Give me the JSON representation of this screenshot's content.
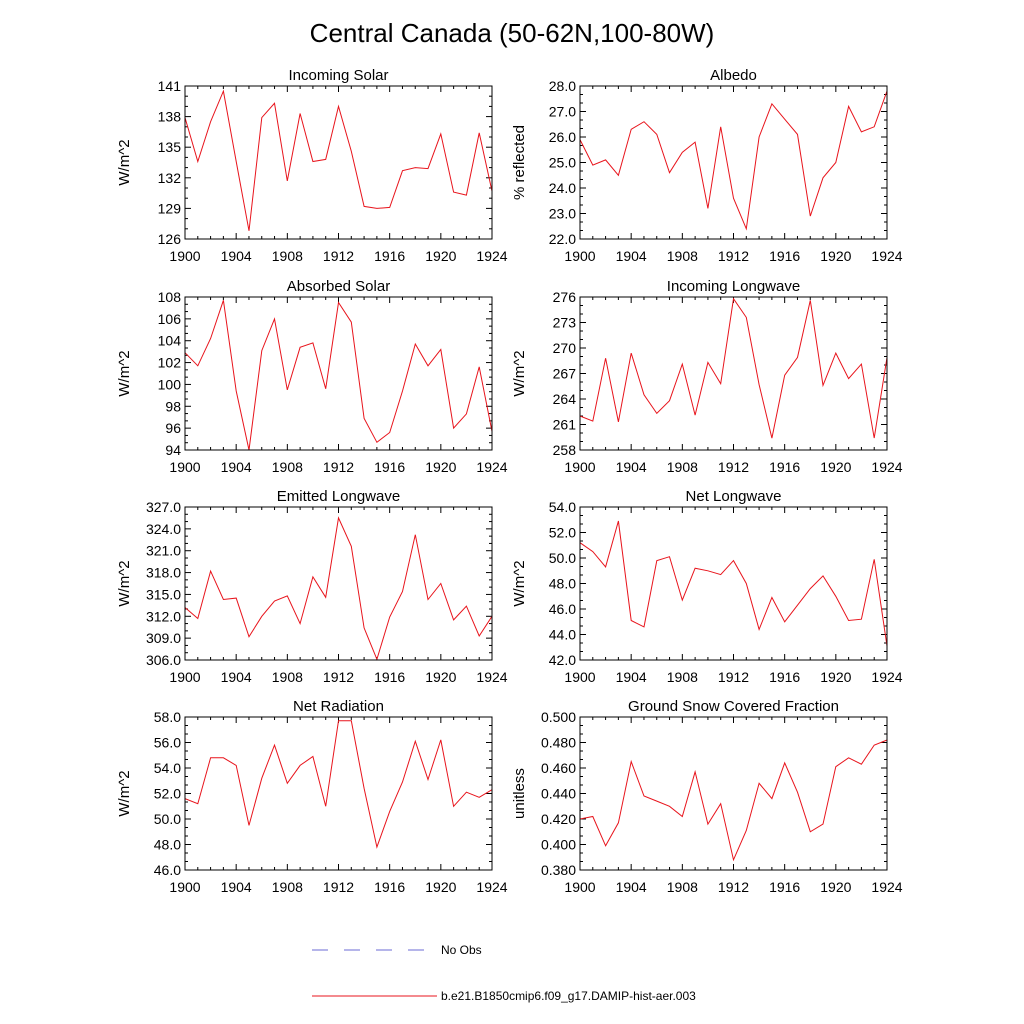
{
  "figure": {
    "title": "Central Canada (50-62N,100-80W)",
    "line_color": "#e8141c",
    "obs_color": "#6b6bd6"
  },
  "legend": {
    "obs_label": "No Obs",
    "model_label": "b.e21.B1850cmip6.f09_g17.DAMIP-hist-aer.003"
  },
  "chart_data": [
    {
      "type": "line",
      "title": "Incoming Solar",
      "ylabel": "W/m^2",
      "xlim": [
        1900,
        1924
      ],
      "ylim": [
        126,
        141
      ],
      "xticks": [
        1900,
        1904,
        1908,
        1912,
        1916,
        1920,
        1924
      ],
      "yticks": [
        "126",
        "129",
        "132",
        "135",
        "138",
        "141"
      ],
      "x": [
        1900,
        1901,
        1902,
        1903,
        1904,
        1905,
        1906,
        1907,
        1908,
        1909,
        1910,
        1911,
        1912,
        1913,
        1914,
        1915,
        1916,
        1917,
        1918,
        1919,
        1920,
        1921,
        1922,
        1923,
        1924
      ],
      "values": [
        137.9,
        133.6,
        137.5,
        140.5,
        133.6,
        126.8,
        137.9,
        139.3,
        131.7,
        138.3,
        133.6,
        133.8,
        139.0,
        134.6,
        129.2,
        129.0,
        129.1,
        132.7,
        133.0,
        132.9,
        136.3,
        130.6,
        130.3,
        136.4,
        130.7
      ]
    },
    {
      "type": "line",
      "title": "Albedo",
      "ylabel": "% reflected",
      "xlim": [
        1900,
        1924
      ],
      "ylim": [
        22,
        28
      ],
      "xticks": [
        1900,
        1904,
        1908,
        1912,
        1916,
        1920,
        1924
      ],
      "yticks": [
        "22.0",
        "23.0",
        "24.0",
        "25.0",
        "26.0",
        "27.0",
        "28.0"
      ],
      "x": [
        1900,
        1901,
        1902,
        1903,
        1904,
        1905,
        1906,
        1907,
        1908,
        1909,
        1910,
        1911,
        1912,
        1913,
        1914,
        1915,
        1916,
        1917,
        1918,
        1919,
        1920,
        1921,
        1922,
        1923,
        1924
      ],
      "values": [
        25.9,
        24.9,
        25.1,
        24.5,
        26.3,
        26.6,
        26.1,
        24.6,
        25.4,
        25.8,
        23.2,
        26.4,
        23.6,
        22.4,
        26.0,
        27.3,
        26.7,
        26.1,
        22.9,
        24.4,
        25.0,
        27.2,
        26.2,
        26.4,
        27.8
      ]
    },
    {
      "type": "line",
      "title": "Absorbed Solar",
      "ylabel": "W/m^2",
      "xlim": [
        1900,
        1924
      ],
      "ylim": [
        94,
        108
      ],
      "xticks": [
        1900,
        1904,
        1908,
        1912,
        1916,
        1920,
        1924
      ],
      "yticks": [
        "94",
        "96",
        "98",
        "100",
        "102",
        "104",
        "106",
        "108"
      ],
      "x": [
        1900,
        1901,
        1902,
        1903,
        1904,
        1905,
        1906,
        1907,
        1908,
        1909,
        1910,
        1911,
        1912,
        1913,
        1914,
        1915,
        1916,
        1917,
        1918,
        1919,
        1920,
        1921,
        1922,
        1923,
        1924
      ],
      "values": [
        102.9,
        101.7,
        104.2,
        107.7,
        99.4,
        94.0,
        103.1,
        106.0,
        99.5,
        103.4,
        103.8,
        99.6,
        107.5,
        105.7,
        96.9,
        94.7,
        95.6,
        99.4,
        103.7,
        101.7,
        103.2,
        96.0,
        97.3,
        101.6,
        95.7
      ]
    },
    {
      "type": "line",
      "title": "Incoming Longwave",
      "ylabel": "W/m^2",
      "xlim": [
        1900,
        1924
      ],
      "ylim": [
        258,
        276
      ],
      "xticks": [
        1900,
        1904,
        1908,
        1912,
        1916,
        1920,
        1924
      ],
      "yticks": [
        "258",
        "261",
        "264",
        "267",
        "270",
        "273",
        "276"
      ],
      "x": [
        1900,
        1901,
        1902,
        1903,
        1904,
        1905,
        1906,
        1907,
        1908,
        1909,
        1910,
        1911,
        1912,
        1913,
        1914,
        1915,
        1916,
        1917,
        1918,
        1919,
        1920,
        1921,
        1922,
        1923,
        1924
      ],
      "values": [
        262.0,
        261.4,
        268.8,
        261.3,
        269.4,
        264.5,
        262.3,
        263.8,
        268.1,
        262.1,
        268.3,
        265.8,
        275.8,
        273.6,
        265.7,
        259.4,
        266.8,
        268.9,
        275.6,
        265.6,
        269.4,
        266.4,
        268.1,
        259.4,
        268.9
      ]
    },
    {
      "type": "line",
      "title": "Emitted Longwave",
      "ylabel": "W/m^2",
      "xlim": [
        1900,
        1924
      ],
      "ylim": [
        306,
        327
      ],
      "xticks": [
        1900,
        1904,
        1908,
        1912,
        1916,
        1920,
        1924
      ],
      "yticks": [
        "306.0",
        "309.0",
        "312.0",
        "315.0",
        "318.0",
        "321.0",
        "324.0",
        "327.0"
      ],
      "x": [
        1900,
        1901,
        1902,
        1903,
        1904,
        1905,
        1906,
        1907,
        1908,
        1909,
        1910,
        1911,
        1912,
        1913,
        1914,
        1915,
        1916,
        1917,
        1918,
        1919,
        1920,
        1921,
        1922,
        1923,
        1924
      ],
      "values": [
        313.2,
        311.7,
        318.2,
        314.3,
        314.5,
        309.2,
        312.0,
        314.1,
        314.8,
        311.0,
        317.4,
        314.6,
        325.5,
        321.6,
        310.4,
        306.1,
        311.9,
        315.4,
        323.2,
        314.3,
        316.5,
        311.5,
        313.4,
        309.3,
        312.0
      ]
    },
    {
      "type": "line",
      "title": "Net Longwave",
      "ylabel": "W/m^2",
      "xlim": [
        1900,
        1924
      ],
      "ylim": [
        42,
        54
      ],
      "xticks": [
        1900,
        1904,
        1908,
        1912,
        1916,
        1920,
        1924
      ],
      "yticks": [
        "42.0",
        "44.0",
        "46.0",
        "48.0",
        "50.0",
        "52.0",
        "54.0"
      ],
      "x": [
        1900,
        1901,
        1902,
        1903,
        1904,
        1905,
        1906,
        1907,
        1908,
        1909,
        1910,
        1911,
        1912,
        1913,
        1914,
        1915,
        1916,
        1917,
        1918,
        1919,
        1920,
        1921,
        1922,
        1923,
        1924
      ],
      "values": [
        51.2,
        50.5,
        49.3,
        52.9,
        45.1,
        44.6,
        49.8,
        50.1,
        46.7,
        49.2,
        49.0,
        48.7,
        49.8,
        48.0,
        44.4,
        46.9,
        45.0,
        46.3,
        47.6,
        48.6,
        47.0,
        45.1,
        45.2,
        49.9,
        43.1
      ]
    },
    {
      "type": "line",
      "title": "Net Radiation",
      "ylabel": "W/m^2",
      "xlim": [
        1900,
        1924
      ],
      "ylim": [
        46,
        58
      ],
      "xticks": [
        1900,
        1904,
        1908,
        1912,
        1916,
        1920,
        1924
      ],
      "yticks": [
        "46.0",
        "48.0",
        "50.0",
        "52.0",
        "54.0",
        "56.0",
        "58.0"
      ],
      "x": [
        1900,
        1901,
        1902,
        1903,
        1904,
        1905,
        1906,
        1907,
        1908,
        1909,
        1910,
        1911,
        1912,
        1913,
        1914,
        1915,
        1916,
        1917,
        1918,
        1919,
        1920,
        1921,
        1922,
        1923,
        1924
      ],
      "values": [
        51.6,
        51.2,
        54.8,
        54.8,
        54.2,
        49.5,
        53.2,
        55.8,
        52.8,
        54.2,
        54.9,
        51.0,
        57.7,
        57.7,
        52.4,
        47.8,
        50.6,
        52.9,
        56.1,
        53.1,
        56.2,
        51.0,
        52.1,
        51.7,
        52.3
      ]
    },
    {
      "type": "line",
      "title": "Ground Snow Covered Fraction",
      "ylabel": "unitless",
      "xlim": [
        1900,
        1924
      ],
      "ylim": [
        0.38,
        0.5
      ],
      "xticks": [
        1900,
        1904,
        1908,
        1912,
        1916,
        1920,
        1924
      ],
      "yticks": [
        "0.380",
        "0.400",
        "0.420",
        "0.440",
        "0.460",
        "0.480",
        "0.500"
      ],
      "x": [
        1900,
        1901,
        1902,
        1903,
        1904,
        1905,
        1906,
        1907,
        1908,
        1909,
        1910,
        1911,
        1912,
        1913,
        1914,
        1915,
        1916,
        1917,
        1918,
        1919,
        1920,
        1921,
        1922,
        1923,
        1924
      ],
      "values": [
        0.42,
        0.422,
        0.399,
        0.417,
        0.465,
        0.438,
        0.434,
        0.43,
        0.422,
        0.457,
        0.416,
        0.432,
        0.388,
        0.411,
        0.448,
        0.436,
        0.464,
        0.441,
        0.41,
        0.416,
        0.461,
        0.468,
        0.463,
        0.478,
        0.482
      ]
    }
  ]
}
